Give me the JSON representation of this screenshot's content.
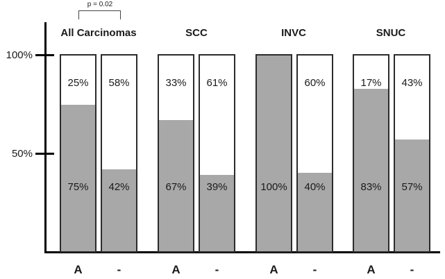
{
  "chart_data": {
    "type": "bar",
    "subtype": "100-percent-stacked-column-pairs",
    "title": "",
    "xlabel": "",
    "ylabel": "",
    "ylim": [
      0,
      100
    ],
    "yticks": [
      100,
      50
    ],
    "ytick_labels": [
      "100%",
      "50%"
    ],
    "grid": false,
    "legend": "none",
    "colors": {
      "gray_segment": "#a8a8a8",
      "white_segment": "#ffffff",
      "bar_border": "#2b2b2b",
      "axis": "#000000"
    },
    "annotations": [
      {
        "text": "p = 0.02",
        "type": "significance-bracket",
        "group": "All Carcinomas",
        "between": [
          "A",
          "-"
        ]
      }
    ],
    "bar_condition_labels": [
      "A",
      "-"
    ],
    "groups": [
      {
        "title": "All Carcinomas",
        "bars": [
          {
            "x_label": "A",
            "gray_pct": 75,
            "white_pct": 25,
            "gray_label": "75%",
            "white_label": "25%"
          },
          {
            "x_label": "-",
            "gray_pct": 42,
            "white_pct": 58,
            "gray_label": "42%",
            "white_label": "58%"
          }
        ]
      },
      {
        "title": "SCC",
        "bars": [
          {
            "x_label": "A",
            "gray_pct": 67,
            "white_pct": 33,
            "gray_label": "67%",
            "white_label": "33%"
          },
          {
            "x_label": "-",
            "gray_pct": 39,
            "white_pct": 61,
            "gray_label": "39%",
            "white_label": "61%"
          }
        ]
      },
      {
        "title": "INVC",
        "bars": [
          {
            "x_label": "A",
            "gray_pct": 100,
            "white_pct": 0,
            "gray_label": "100%",
            "white_label": ""
          },
          {
            "x_label": "-",
            "gray_pct": 40,
            "white_pct": 60,
            "gray_label": "40%",
            "white_label": "60%"
          }
        ]
      },
      {
        "title": "SNUC",
        "bars": [
          {
            "x_label": "A",
            "gray_pct": 83,
            "white_pct": 17,
            "gray_label": "83%",
            "white_label": "17%"
          },
          {
            "x_label": "-",
            "gray_pct": 57,
            "white_pct": 43,
            "gray_label": "57%",
            "white_label": "43%"
          }
        ]
      }
    ]
  }
}
